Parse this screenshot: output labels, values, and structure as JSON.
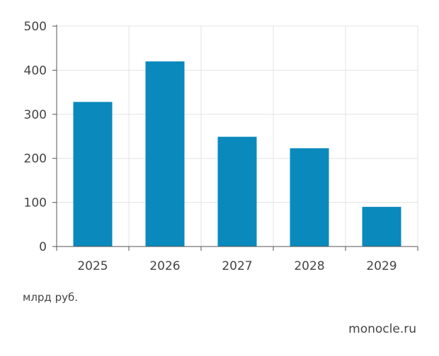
{
  "chart_data": {
    "type": "bar",
    "categories": [
      "2025",
      "2026",
      "2027",
      "2028",
      "2029"
    ],
    "values": [
      328,
      420,
      249,
      223,
      90
    ],
    "title": "",
    "xlabel": "",
    "ylabel": "",
    "ylim": [
      0,
      500
    ],
    "yticks": [
      "0",
      "100",
      "200",
      "300",
      "400",
      "500"
    ],
    "grid": true,
    "bar_color": "#0a89bd",
    "grid_color": "#e3e3e3",
    "axis_color": "#555555"
  },
  "unit_label": "млрд руб.",
  "source": "monocle.ru"
}
